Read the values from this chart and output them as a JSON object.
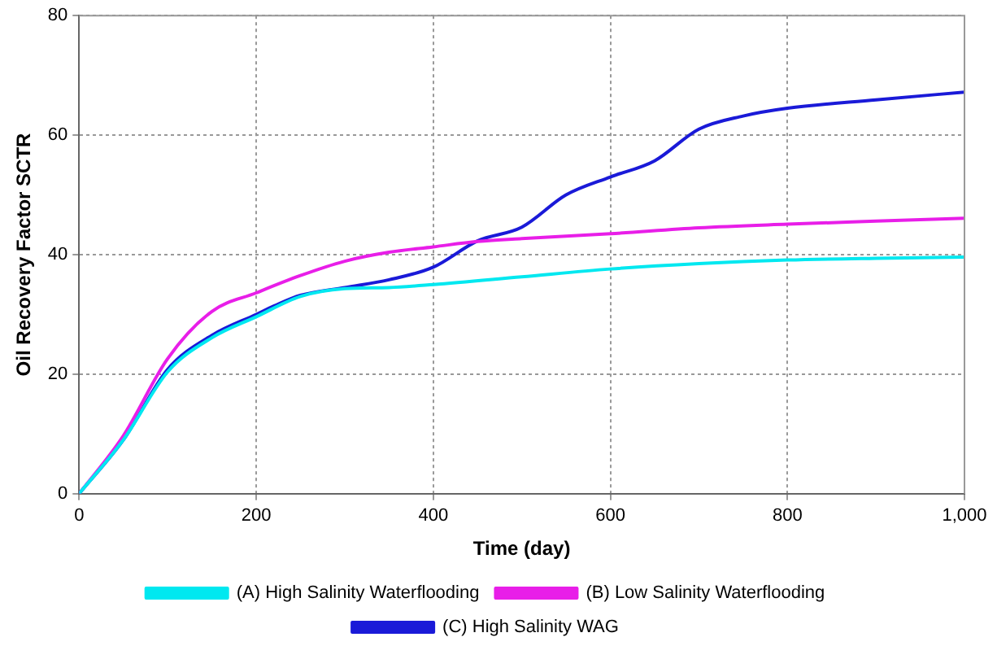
{
  "chart_data": {
    "type": "line",
    "xlabel": "Time (day)",
    "ylabel": "Oil Recovery Factor SCTR",
    "xlim": [
      0,
      1000
    ],
    "ylim": [
      0,
      80
    ],
    "xticks": [
      0,
      200,
      400,
      600,
      800,
      {
        "value": 1000,
        "label": "1,000"
      }
    ],
    "yticks": [
      0,
      20,
      40,
      60,
      80
    ],
    "grid": true,
    "legend": "bottom",
    "marker": "none",
    "line_style": "solid",
    "series": [
      {
        "name": "(A) High Salinity Waterflooding",
        "color": "#00e8f0",
        "x": [
          0,
          50,
          100,
          150,
          200,
          250,
          300,
          350,
          400,
          500,
          600,
          700,
          800,
          900,
          1000
        ],
        "values": [
          0,
          9,
          20.4,
          26.1,
          29.6,
          33,
          34.3,
          34.5,
          35,
          36.3,
          37.6,
          38.5,
          39.1,
          39.4,
          39.6
        ]
      },
      {
        "name": "(B) Low Salinity Waterflooding",
        "color": "#e81ee8",
        "x": [
          0,
          50,
          100,
          150,
          200,
          250,
          300,
          350,
          400,
          450,
          500,
          600,
          700,
          800,
          900,
          1000
        ],
        "values": [
          0,
          9.7,
          22.6,
          30.5,
          33.6,
          36.5,
          38.9,
          40.4,
          41.3,
          42.2,
          42.7,
          43.5,
          44.5,
          45.1,
          45.6,
          46.1
        ]
      },
      {
        "name": "(C) High Salinity WAG",
        "color": "#1a1ad8",
        "x": [
          0,
          50,
          100,
          150,
          200,
          220,
          250,
          300,
          350,
          400,
          450,
          500,
          550,
          600,
          650,
          700,
          750,
          800,
          900,
          1000
        ],
        "values": [
          0,
          9,
          20.8,
          26.5,
          30,
          31.4,
          33.2,
          34.5,
          35.8,
          37.9,
          42.3,
          44.6,
          50,
          53,
          55.7,
          61,
          63.2,
          64.5,
          65.9,
          67.2
        ]
      }
    ]
  }
}
